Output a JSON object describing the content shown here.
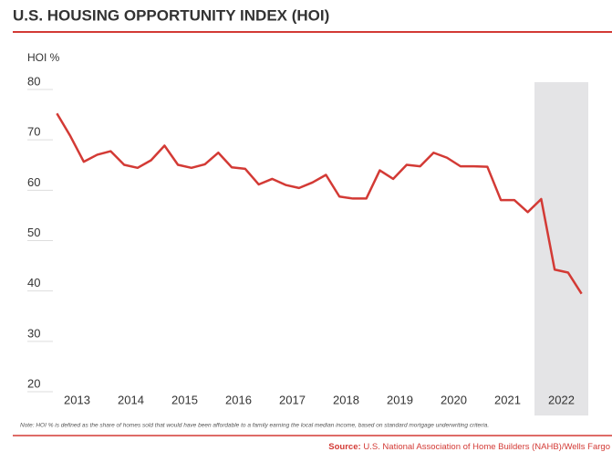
{
  "chart_data": {
    "type": "line",
    "title": "U.S. HOUSING OPPORTUNITY INDEX (HOI)",
    "y_label": "HOI %",
    "x": [
      2013.125,
      2013.375,
      2013.625,
      2013.875,
      2014.125,
      2014.375,
      2014.625,
      2014.875,
      2015.125,
      2015.375,
      2015.625,
      2015.875,
      2016.125,
      2016.375,
      2016.625,
      2016.875,
      2017.125,
      2017.375,
      2017.625,
      2017.875,
      2018.125,
      2018.375,
      2018.625,
      2018.875,
      2019.125,
      2019.375,
      2019.625,
      2019.875,
      2020.125,
      2020.375,
      2020.625,
      2020.875,
      2021.125,
      2021.375,
      2021.625,
      2021.875,
      2022.125,
      2022.375,
      2022.625,
      2022.875
    ],
    "values": [
      73.8,
      69.3,
      64.2,
      65.6,
      66.3,
      63.6,
      63.0,
      64.5,
      67.4,
      63.6,
      63.0,
      63.7,
      66.0,
      63.1,
      62.8,
      59.7,
      60.8,
      59.6,
      59.0,
      60.1,
      61.6,
      57.3,
      56.9,
      56.9,
      62.5,
      60.8,
      63.6,
      63.3,
      66.0,
      65.0,
      63.3,
      63.3,
      63.2,
      56.6,
      56.6,
      54.2,
      56.8,
      42.8,
      42.2,
      38.0
    ],
    "color": "#d33a35",
    "xlim": [
      2013,
      2023
    ],
    "xticks": [
      {
        "value": 2013.5,
        "label": "2013"
      },
      {
        "value": 2014.5,
        "label": "2014"
      },
      {
        "value": 2015.5,
        "label": "2015"
      },
      {
        "value": 2016.5,
        "label": "2016"
      },
      {
        "value": 2017.5,
        "label": "2017"
      },
      {
        "value": 2018.5,
        "label": "2018"
      },
      {
        "value": 2019.5,
        "label": "2019"
      },
      {
        "value": 2020.5,
        "label": "2020"
      },
      {
        "value": 2021.5,
        "label": "2021"
      },
      {
        "value": 2022.5,
        "label": "2022"
      }
    ],
    "ylim": [
      20,
      80
    ],
    "yticks": [
      20,
      30,
      40,
      50,
      60,
      70,
      80
    ],
    "highlight": [
      2022,
      2023
    ],
    "highlight_color": "#e4e4e6",
    "note": "Note: HOI % is defined as the share of homes sold that would have been affordable to a family earning the local median income, based on standard mortgage underwriting criteria.",
    "source_label": "Source:",
    "source_text": "U.S. National Association of Home Builders (NAHB)/Wells Fargo"
  }
}
